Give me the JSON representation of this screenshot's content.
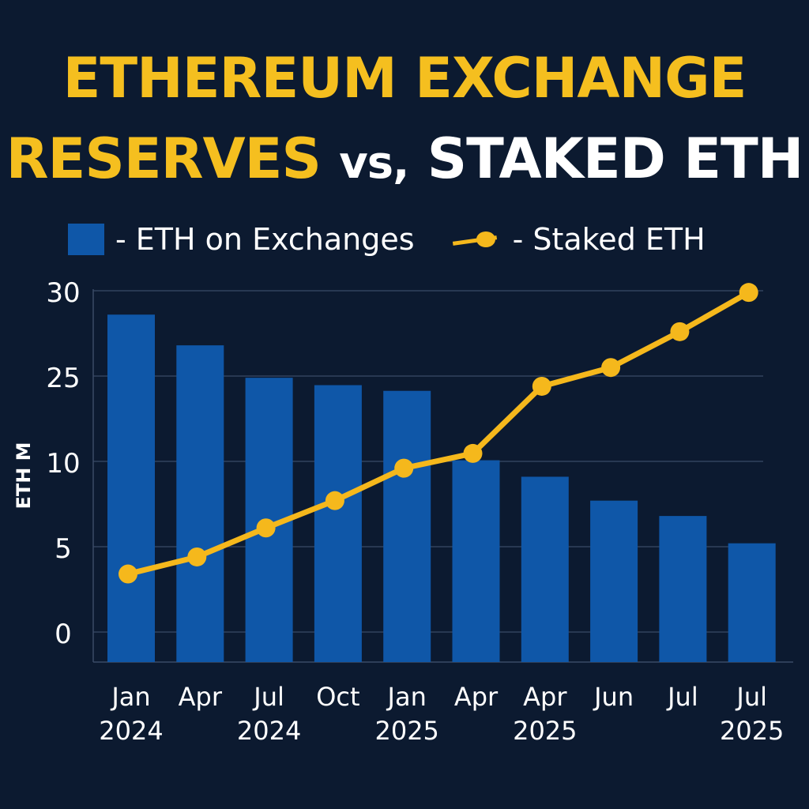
{
  "title": {
    "line1": "ETHEREUM EXCHANGE",
    "line2_part1": "RESERVES",
    "line2_part2": "vs,",
    "line2_part3": "STAKED ETH"
  },
  "legend": {
    "bars_label": "- ETH on Exchanges",
    "line_label": "- Staked ETH"
  },
  "colors": {
    "background": "#0c1a30",
    "bars": "#0f57a8",
    "line": "#f5b81c",
    "title_accent": "#f5bf1f",
    "grid": "#3a4a66"
  },
  "chart_data": {
    "type": "bar",
    "ylabel": "ETH M",
    "y_ticks": [
      "30",
      "25",
      "10",
      "5",
      "0"
    ],
    "categories": [
      [
        "Jan",
        "2024"
      ],
      [
        "Apr",
        ""
      ],
      [
        "Jul",
        "2024"
      ],
      [
        "Oct",
        ""
      ],
      [
        "Jan",
        "2025"
      ],
      [
        "Apr",
        ""
      ],
      [
        "Apr",
        "2025"
      ],
      [
        "Jun",
        ""
      ],
      [
        "Jul",
        ""
      ],
      [
        "Jul",
        "2025"
      ]
    ],
    "series": [
      {
        "name": "ETH on Exchanges",
        "type": "bar",
        "values": [
          28.6,
          26.8,
          24.7,
          23.4,
          22.4,
          10.2,
          9.1,
          7.7,
          6.8,
          5.2
        ]
      },
      {
        "name": "Staked ETH",
        "type": "line",
        "values": [
          3.4,
          4.4,
          6.1,
          7.7,
          9.6,
          11.4,
          23.2,
          25.5,
          27.6,
          29.9
        ]
      }
    ],
    "grid": true,
    "legend_position": "top-left"
  }
}
